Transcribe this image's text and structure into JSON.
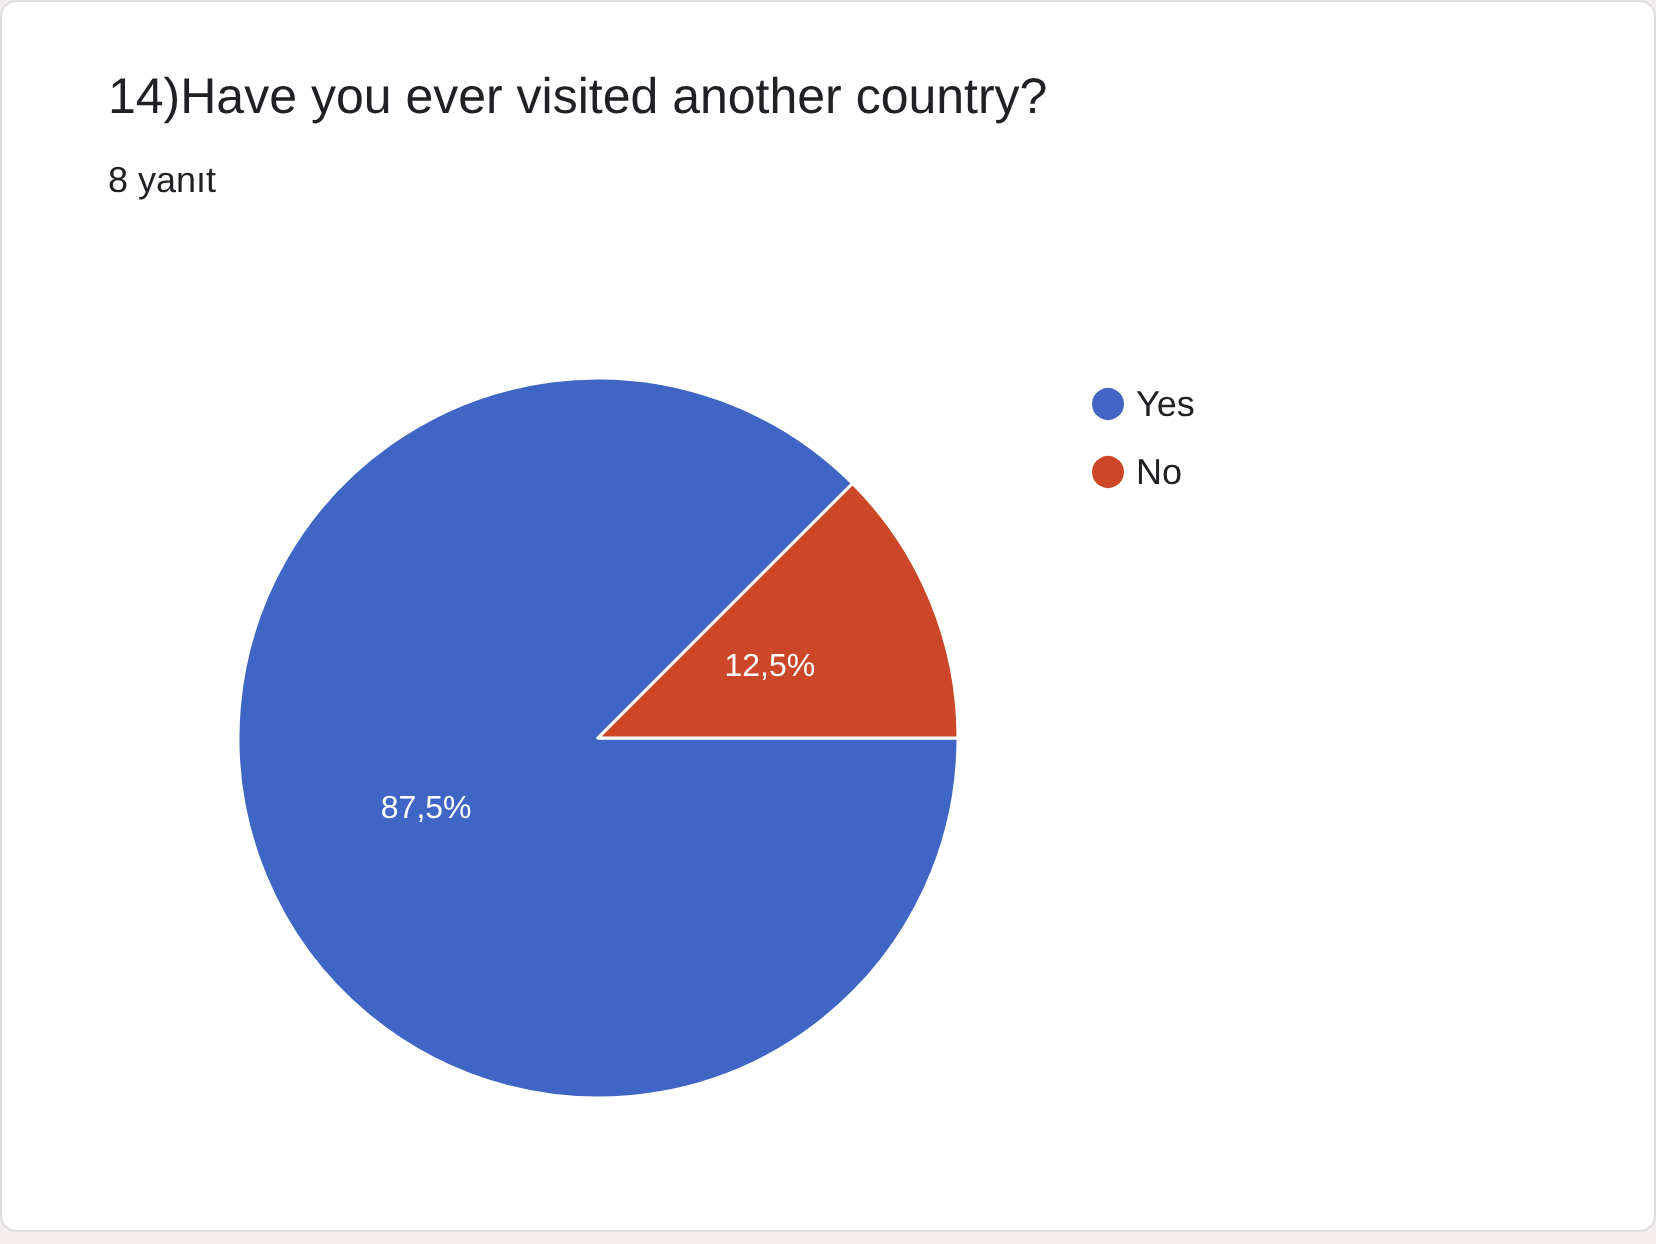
{
  "chart_data": {
    "type": "pie",
    "title": "14)Have you ever visited another country?",
    "subtitle": "8 yanıt",
    "categories": [
      "Yes",
      "No"
    ],
    "values": [
      87.5,
      12.5
    ],
    "colors": [
      "#3f66c5",
      "#cc4727"
    ],
    "data_labels": true,
    "value_labels": [
      "87,5%",
      "12,5%"
    ],
    "legend": "right"
  }
}
